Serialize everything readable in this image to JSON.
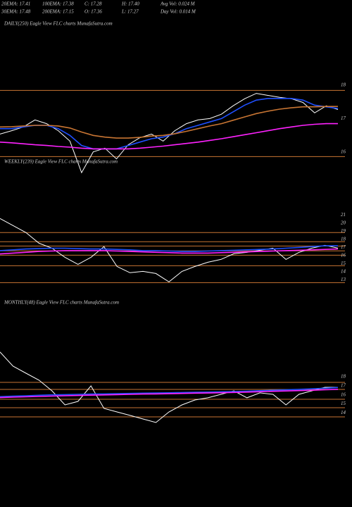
{
  "header": {
    "rows": [
      [
        "20EMA: 17.41",
        "100EMA: 17.38",
        "C: 17.28",
        "H: 17.40",
        "Avg Vol: 0.024 M"
      ],
      [
        "30EMA: 17.48",
        "200EMA: 17.15",
        "O: 17.36",
        "L: 17.27",
        "Day Vol: 0.014 M"
      ]
    ]
  },
  "chart_data": [
    {
      "type": "line",
      "title": "DAILY(250) Eagle View FLC charts MunafaSutra.com",
      "ylim": [
        15.5,
        19.9
      ],
      "yticks": [
        18,
        17,
        16
      ],
      "levels": [
        17.84,
        15.87
      ],
      "level_color": "#c87533",
      "series": [
        {
          "color": "#ffffff",
          "values": [
            16.54,
            16.64,
            16.75,
            16.96,
            16.85,
            16.64,
            16.33,
            15.39,
            16.01,
            16.12,
            15.8,
            16.22,
            16.43,
            16.54,
            16.33,
            16.64,
            16.85,
            16.96,
            17.0,
            17.13,
            17.38,
            17.59,
            17.75,
            17.69,
            17.63,
            17.59,
            17.48,
            17.17,
            17.38,
            17.27
          ]
        },
        {
          "color": "#1f4fff",
          "values": [
            16.7,
            16.7,
            16.75,
            16.8,
            16.8,
            16.7,
            16.5,
            16.2,
            16.1,
            16.1,
            16.1,
            16.2,
            16.3,
            16.4,
            16.45,
            16.55,
            16.7,
            16.8,
            16.9,
            17.0,
            17.2,
            17.4,
            17.55,
            17.6,
            17.6,
            17.6,
            17.55,
            17.4,
            17.35,
            17.3
          ]
        },
        {
          "color": "#c87533",
          "values": [
            16.75,
            16.76,
            16.78,
            16.8,
            16.8,
            16.78,
            16.72,
            16.6,
            16.5,
            16.45,
            16.42,
            16.42,
            16.44,
            16.48,
            16.5,
            16.55,
            16.62,
            16.7,
            16.78,
            16.85,
            16.95,
            17.05,
            17.15,
            17.22,
            17.28,
            17.32,
            17.35,
            17.35,
            17.36,
            17.36
          ]
        },
        {
          "color": "#ff22ff",
          "values": [
            16.3,
            16.28,
            16.25,
            16.22,
            16.2,
            16.17,
            16.15,
            16.12,
            16.1,
            16.1,
            16.1,
            16.1,
            16.12,
            16.15,
            16.18,
            16.22,
            16.26,
            16.3,
            16.35,
            16.4,
            16.46,
            16.52,
            16.58,
            16.64,
            16.7,
            16.75,
            16.8,
            16.83,
            16.85,
            16.85
          ]
        }
      ]
    },
    {
      "type": "line",
      "title": "WEEKLY(239) Eagle View FLC charts MunafaSutra.com",
      "ylim": [
        11.9,
        21.9
      ],
      "yticks": [
        21,
        20,
        19,
        18,
        17,
        16,
        15,
        14,
        13
      ],
      "levels": [
        18.83,
        17.7,
        17.17,
        16.57,
        16.04,
        14.74,
        12.65
      ],
      "level_color": "#c87533",
      "series": [
        {
          "color": "#ffffff",
          "values": [
            20.57,
            19.7,
            18.83,
            17.52,
            16.91,
            15.78,
            14.91,
            15.78,
            17.09,
            14.65,
            13.87,
            14.04,
            13.78,
            12.74,
            14.04,
            14.65,
            15.17,
            15.52,
            16.22,
            16.39,
            16.65,
            16.91,
            15.52,
            16.39,
            16.91,
            17.26,
            16.91
          ]
        },
        {
          "color": "#1f4fff",
          "values": [
            16.6,
            16.7,
            16.8,
            16.85,
            16.9,
            16.9,
            16.85,
            16.8,
            16.8,
            16.75,
            16.7,
            16.6,
            16.6,
            16.55,
            16.5,
            16.5,
            16.55,
            16.6,
            16.65,
            16.7,
            16.75,
            16.8,
            16.9,
            17.0,
            17.1,
            17.2,
            17.2
          ]
        },
        {
          "color": "#ff22ff",
          "values": [
            16.2,
            16.3,
            16.4,
            16.5,
            16.55,
            16.6,
            16.6,
            16.6,
            16.6,
            16.55,
            16.5,
            16.45,
            16.4,
            16.35,
            16.3,
            16.3,
            16.3,
            16.35,
            16.4,
            16.45,
            16.5,
            16.55,
            16.6,
            16.65,
            16.7,
            16.75,
            16.8
          ]
        }
      ]
    },
    {
      "type": "line",
      "title": "MONTHLY(48) Eagle View FLC charts MunafaSutra.com",
      "ylim": [
        12.5,
        23
      ],
      "yticks": [
        18,
        17,
        16,
        15,
        14
      ],
      "levels": [
        17.36,
        16.59,
        15.51,
        14.58,
        13.58
      ],
      "level_color": "#c87533",
      "series": [
        {
          "color": "#ffffff",
          "values": [
            20.69,
            19.14,
            18.37,
            17.6,
            16.44,
            14.89,
            15.28,
            16.98,
            14.51,
            14.12,
            13.74,
            13.35,
            12.96,
            14.12,
            14.89,
            15.43,
            15.67,
            16.05,
            16.44,
            15.67,
            16.21,
            16.05,
            14.89,
            16.05,
            16.44,
            16.82,
            16.82
          ]
        },
        {
          "color": "#1f4fff",
          "values": [
            15.8,
            15.85,
            15.9,
            15.95,
            16.0,
            16.02,
            16.05,
            16.08,
            16.1,
            16.12,
            16.15,
            16.18,
            16.2,
            16.22,
            16.25,
            16.28,
            16.3,
            16.33,
            16.36,
            16.4,
            16.45,
            16.5,
            16.55,
            16.6,
            16.65,
            16.72,
            16.8
          ]
        },
        {
          "color": "#ff22ff",
          "values": [
            15.7,
            15.74,
            15.78,
            15.82,
            15.86,
            15.9,
            15.93,
            15.96,
            15.99,
            16.02,
            16.05,
            16.08,
            16.1,
            16.12,
            16.15,
            16.18,
            16.2,
            16.23,
            16.26,
            16.3,
            16.34,
            16.38,
            16.42,
            16.46,
            16.5,
            16.55,
            16.6
          ]
        }
      ]
    }
  ]
}
